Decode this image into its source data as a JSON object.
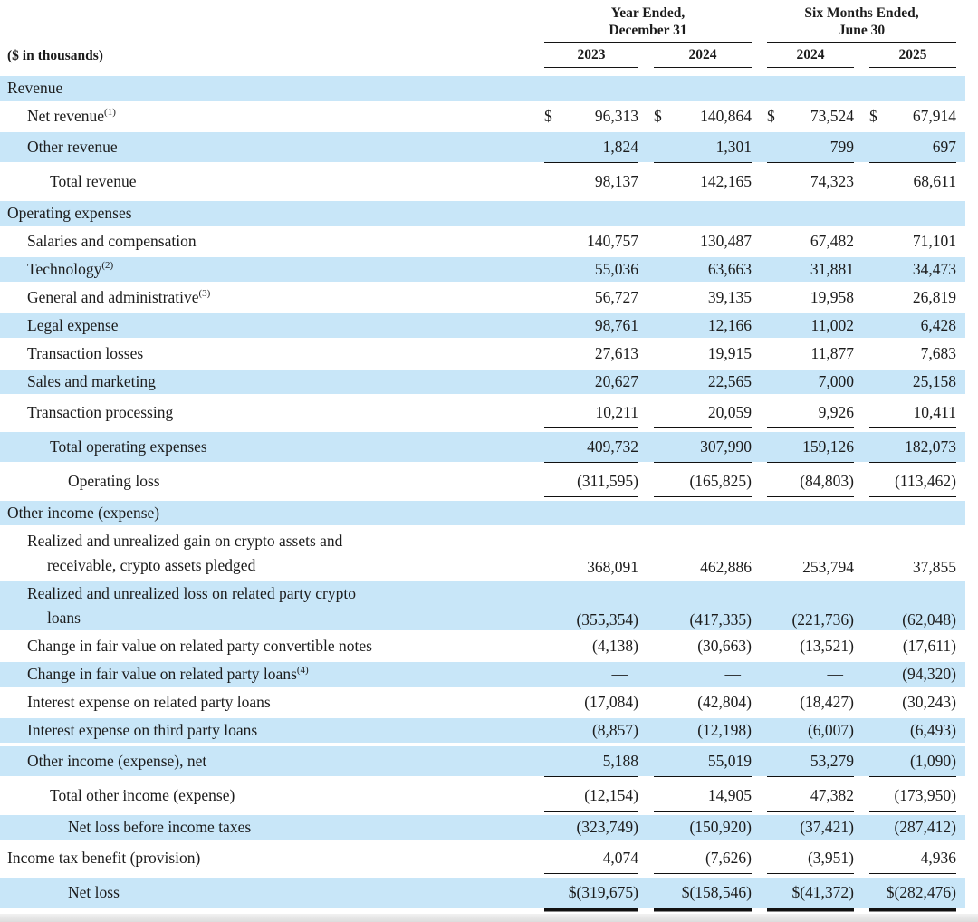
{
  "units_note": "($ in thousands)",
  "header": {
    "group1": {
      "line1": "Year Ended,",
      "line2": "December 31"
    },
    "group2": {
      "line1": "Six Months Ended,",
      "line2": "June 30"
    },
    "years": [
      "2023",
      "2024",
      "2024",
      "2025"
    ]
  },
  "colors": {
    "row_highlight": "#c8e6f8",
    "rule": "#111111",
    "text": "#1c1c1c"
  },
  "rows": [
    {
      "label": "Revenue",
      "indent": 0,
      "highlight": true,
      "rule": "none",
      "values": [
        "",
        "",
        "",
        ""
      ]
    },
    {
      "label": "Net revenue",
      "sup": "(1)",
      "indent": 1,
      "highlight": false,
      "dollar": "$",
      "rule": "none",
      "values": [
        "96,313",
        "140,864",
        "73,524",
        "67,914"
      ]
    },
    {
      "label": "Other revenue",
      "indent": 1,
      "highlight": true,
      "rule": "single",
      "values": [
        "1,824",
        "1,301",
        "799",
        "697"
      ]
    },
    {
      "label": "Total revenue",
      "indent": 2,
      "highlight": false,
      "rule": "single",
      "values": [
        "98,137",
        "142,165",
        "74,323",
        "68,611"
      ]
    },
    {
      "label": "Operating expenses",
      "indent": 0,
      "highlight": true,
      "rule": "none",
      "values": [
        "",
        "",
        "",
        ""
      ]
    },
    {
      "label": "Salaries and compensation",
      "indent": 1,
      "highlight": false,
      "rule": "none",
      "values": [
        "140,757",
        "130,487",
        "67,482",
        "71,101"
      ]
    },
    {
      "label": "Technology",
      "sup": "(2)",
      "indent": 1,
      "highlight": true,
      "rule": "none",
      "values": [
        "55,036",
        "63,663",
        "31,881",
        "34,473"
      ]
    },
    {
      "label": "General and administrative",
      "sup": "(3)",
      "indent": 1,
      "highlight": false,
      "rule": "none",
      "values": [
        "56,727",
        "39,135",
        "19,958",
        "26,819"
      ]
    },
    {
      "label": "Legal expense",
      "indent": 1,
      "highlight": true,
      "rule": "none",
      "values": [
        "98,761",
        "12,166",
        "11,002",
        "6,428"
      ]
    },
    {
      "label": "Transaction losses",
      "indent": 1,
      "highlight": false,
      "rule": "none",
      "values": [
        "27,613",
        "19,915",
        "11,877",
        "7,683"
      ]
    },
    {
      "label": "Sales and marketing",
      "indent": 1,
      "highlight": true,
      "rule": "none",
      "values": [
        "20,627",
        "22,565",
        "7,000",
        "25,158"
      ]
    },
    {
      "label": "Transaction processing",
      "indent": 1,
      "highlight": false,
      "rule": "single",
      "values": [
        "10,211",
        "20,059",
        "9,926",
        "10,411"
      ]
    },
    {
      "label": "Total operating expenses",
      "indent": 2,
      "highlight": true,
      "rule": "single",
      "values": [
        "409,732",
        "307,990",
        "159,126",
        "182,073"
      ]
    },
    {
      "label": "Operating loss",
      "indent": 3,
      "highlight": false,
      "rule": "single",
      "values": [
        "(311,595)",
        "(165,825)",
        "(84,803)",
        "(113,462)"
      ]
    },
    {
      "label": "Other income (expense)",
      "indent": 0,
      "highlight": true,
      "rule": "none",
      "values": [
        "",
        "",
        "",
        ""
      ]
    },
    {
      "label": "Realized and unrealized gain on crypto assets and",
      "label2": "receivable, crypto assets pledged",
      "indent": 1,
      "highlight": false,
      "rule": "none",
      "values": [
        "368,091",
        "462,886",
        "253,794",
        "37,855"
      ]
    },
    {
      "label": "Realized and unrealized loss on related party crypto",
      "label2": "loans",
      "indent": 1,
      "highlight": true,
      "rule": "none",
      "values": [
        "(355,354)",
        "(417,335)",
        "(221,736)",
        "(62,048)"
      ]
    },
    {
      "label": "Change in fair value on related party convertible notes",
      "indent": 1,
      "highlight": false,
      "rule": "none",
      "values": [
        "(4,138)",
        "(30,663)",
        "(13,521)",
        "(17,611)"
      ]
    },
    {
      "label": "Change in fair value on related party loans",
      "sup": "(4)",
      "indent": 1,
      "highlight": true,
      "rule": "none",
      "values": [
        "—",
        "—",
        "—",
        "(94,320)"
      ]
    },
    {
      "label": "Interest expense on related party loans",
      "indent": 1,
      "highlight": false,
      "rule": "none",
      "values": [
        "(17,084)",
        "(42,804)",
        "(18,427)",
        "(30,243)"
      ]
    },
    {
      "label": "Interest expense on third party loans",
      "indent": 1,
      "highlight": true,
      "rule": "none",
      "values": [
        "(8,857)",
        "(12,198)",
        "(6,007)",
        "(6,493)"
      ]
    },
    {
      "label": "Other income (expense), net",
      "indent": 1,
      "highlight": true,
      "rule": "single",
      "values": [
        "5,188",
        "55,019",
        "53,279",
        "(1,090)"
      ]
    },
    {
      "label": "Total other income (expense)",
      "indent": 2,
      "highlight": false,
      "rule": "single",
      "values": [
        "(12,154)",
        "14,905",
        "47,382",
        "(173,950)"
      ]
    },
    {
      "label": "Net loss before income taxes",
      "indent": 3,
      "highlight": true,
      "rule": "none",
      "values": [
        "(323,749)",
        "(150,920)",
        "(37,421)",
        "(287,412)"
      ]
    },
    {
      "label": "Income tax benefit (provision)",
      "indent": 0,
      "highlight": false,
      "rule": "single",
      "values": [
        "4,074",
        "(7,626)",
        "(3,951)",
        "4,936"
      ]
    },
    {
      "label": "Net loss",
      "indent": 3,
      "highlight": true,
      "rule": "double",
      "values": [
        "$(319,675)",
        "$(158,546)",
        "$(41,372)",
        "$(282,476)"
      ]
    }
  ]
}
